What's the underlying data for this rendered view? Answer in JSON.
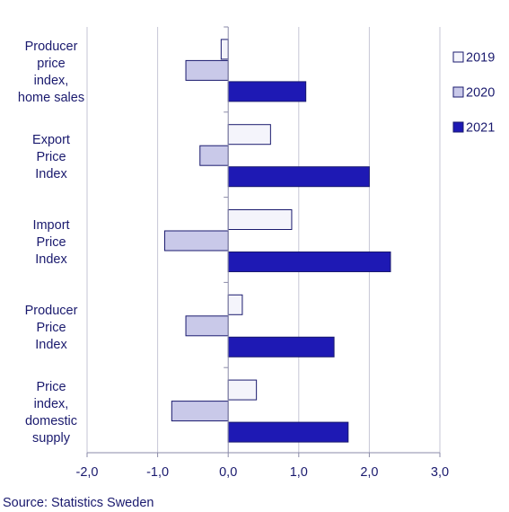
{
  "chart_data": {
    "type": "bar",
    "orientation": "horizontal",
    "categories": [
      [
        "Producer",
        "price",
        "index,",
        "home sales"
      ],
      [
        "Export",
        "Price",
        "Index"
      ],
      [
        "Import",
        "Price",
        "Index"
      ],
      [
        "Producer",
        "Price",
        "Index"
      ],
      [
        "Price",
        "index,",
        "domestic",
        "supply"
      ]
    ],
    "series": [
      {
        "name": "2019",
        "values": [
          -0.1,
          0.6,
          0.9,
          0.2,
          0.4
        ],
        "color": "#f4f4fb"
      },
      {
        "name": "2020",
        "values": [
          -0.6,
          -0.4,
          -0.9,
          -0.6,
          -0.8
        ],
        "color": "#c9c9e9"
      },
      {
        "name": "2021",
        "values": [
          1.1,
          2.0,
          2.3,
          1.5,
          1.7
        ],
        "color": "#1e19b4"
      }
    ],
    "xlim": [
      -2.0,
      3.0
    ],
    "xticks": [
      -2.0,
      -1.0,
      0.0,
      1.0,
      2.0,
      3.0
    ],
    "xtick_labels": [
      "-2,0",
      "-1,0",
      "0,0",
      "1,0",
      "2,0",
      "3,0"
    ],
    "grid": true,
    "legend": "top-right",
    "title": "",
    "xlabel": "",
    "ylabel": ""
  },
  "source": "Source: Statistics Sweden"
}
